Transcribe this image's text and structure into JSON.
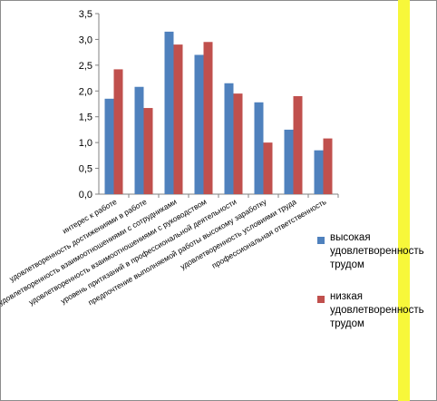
{
  "chart_data": {
    "type": "bar",
    "categories": [
      "интерес к работе",
      "удовлетворенность достижениями в работе",
      "удовлетворенность взаимоотношениями с сотрудниками",
      "удовлетворенность взаимоотношениями с руководством",
      "уровень притязаний в профессиональной деятельности",
      "предпочтение выполняемой работы высокому заработку",
      "удовлетворенность условиями труда",
      "профессиональная ответственность"
    ],
    "series": [
      {
        "name": "высокая удовлетворенность трудом",
        "color": "#4f81bd",
        "values": [
          1.85,
          2.08,
          3.15,
          2.7,
          2.15,
          1.78,
          1.25,
          0.85
        ]
      },
      {
        "name": "низкая удовлетворенность трудом",
        "color": "#c0504d",
        "values": [
          2.42,
          1.67,
          2.9,
          2.95,
          1.95,
          1.0,
          1.9,
          1.08
        ]
      }
    ],
    "yticks": [
      "0,0",
      "0,5",
      "1,0",
      "1,5",
      "2,0",
      "2,5",
      "3,0",
      "3,5"
    ],
    "ylim": [
      0,
      3.5
    ],
    "grid": false,
    "legend_position": "right"
  }
}
